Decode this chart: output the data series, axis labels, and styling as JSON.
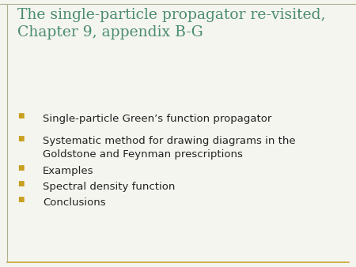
{
  "title_line1": "The single-particle propagator re-visited,",
  "title_line2": "Chapter 9, appendix B-G",
  "title_color": "#4a8c70",
  "bullet_color": "#c8a020",
  "bullet_text_color": "#222222",
  "background_color": "#f5f5f0",
  "border_color": "#c8a832",
  "border_top_color": "#b0b090",
  "bullets": [
    "Single-particle Green’s function propagator",
    "Systematic method for drawing diagrams in the\nGoldstone and Feynman prescriptions",
    "Examples",
    "Spectral density function",
    "Conclusions"
  ],
  "title_fontsize": 13.5,
  "bullet_fontsize": 9.5,
  "fig_width": 4.5,
  "fig_height": 3.38,
  "dpi": 100
}
